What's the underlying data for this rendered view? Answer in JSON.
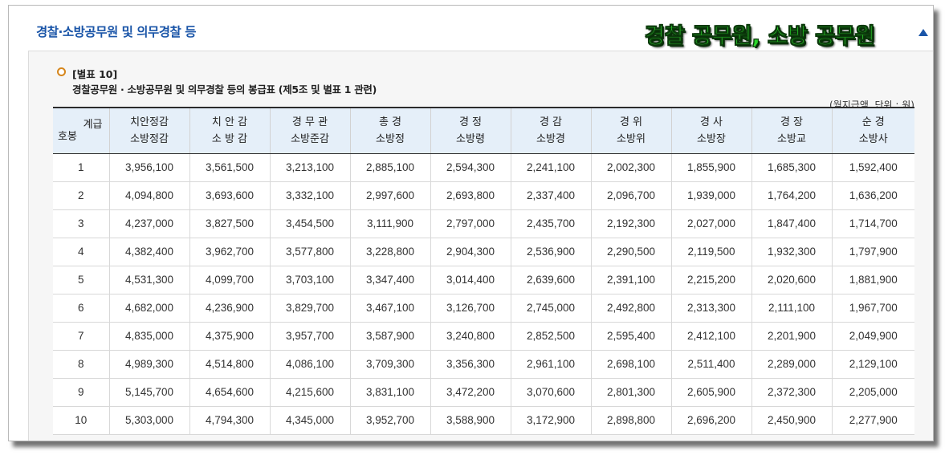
{
  "section_title": "경찰·소방공무원 및 의무경찰 등",
  "overlay_title": "경찰 공무원, 소방 공무원",
  "caption": {
    "label": "[별표 10]",
    "title": "경찰공무원 · 소방공무원 및 의무경찰 등의 봉급표 (제5조 및 별표 1 관련)",
    "unit": "(월지급액, 단위 : 원)"
  },
  "icons": {
    "bullet": "circle-bullet-icon",
    "collapse": "triangle-up-icon"
  },
  "colors": {
    "accent": "#1a55a8",
    "header_bg": "#e5eff9",
    "overlay_green": "#2bd62b",
    "bullet": "#d6861c"
  },
  "table": {
    "corner_top": "계급",
    "corner_bottom": "호봉",
    "columns": [
      [
        "치안정감",
        "소방정감"
      ],
      [
        "치 안 감",
        "소 방 감"
      ],
      [
        "경 무 관",
        "소방준감"
      ],
      [
        "총 경",
        "소방정"
      ],
      [
        "경 정",
        "소방령"
      ],
      [
        "경 감",
        "소방경"
      ],
      [
        "경 위",
        "소방위"
      ],
      [
        "경 사",
        "소방장"
      ],
      [
        "경 장",
        "소방교"
      ],
      [
        "순 경",
        "소방사"
      ]
    ],
    "rows": [
      [
        "1",
        "3,956,100",
        "3,561,500",
        "3,213,100",
        "2,885,100",
        "2,594,300",
        "2,241,100",
        "2,002,300",
        "1,855,900",
        "1,685,300",
        "1,592,400"
      ],
      [
        "2",
        "4,094,800",
        "3,693,600",
        "3,332,100",
        "2,997,600",
        "2,693,800",
        "2,337,400",
        "2,096,700",
        "1,939,000",
        "1,764,200",
        "1,636,200"
      ],
      [
        "3",
        "4,237,000",
        "3,827,500",
        "3,454,500",
        "3,111,900",
        "2,797,000",
        "2,435,700",
        "2,192,300",
        "2,027,000",
        "1,847,400",
        "1,714,700"
      ],
      [
        "4",
        "4,382,400",
        "3,962,700",
        "3,577,800",
        "3,228,800",
        "2,904,300",
        "2,536,900",
        "2,290,500",
        "2,119,500",
        "1,932,300",
        "1,797,900"
      ],
      [
        "5",
        "4,531,300",
        "4,099,700",
        "3,703,100",
        "3,347,400",
        "3,014,400",
        "2,639,600",
        "2,391,100",
        "2,215,200",
        "2,020,600",
        "1,881,900"
      ],
      [
        "6",
        "4,682,000",
        "4,236,900",
        "3,829,700",
        "3,467,100",
        "3,126,700",
        "2,745,000",
        "2,492,800",
        "2,313,300",
        "2,111,100",
        "1,967,700"
      ],
      [
        "7",
        "4,835,000",
        "4,375,900",
        "3,957,700",
        "3,587,900",
        "3,240,800",
        "2,852,500",
        "2,595,400",
        "2,412,100",
        "2,201,900",
        "2,049,900"
      ],
      [
        "8",
        "4,989,300",
        "4,514,800",
        "4,086,100",
        "3,709,300",
        "3,356,300",
        "2,961,100",
        "2,698,100",
        "2,511,400",
        "2,289,000",
        "2,129,100"
      ],
      [
        "9",
        "5,145,700",
        "4,654,600",
        "4,215,600",
        "3,831,100",
        "3,472,200",
        "3,070,600",
        "2,801,300",
        "2,605,900",
        "2,372,300",
        "2,205,000"
      ],
      [
        "10",
        "5,303,000",
        "4,794,300",
        "4,345,000",
        "3,952,700",
        "3,588,900",
        "3,172,900",
        "2,898,800",
        "2,696,200",
        "2,450,900",
        "2,277,900"
      ]
    ]
  }
}
